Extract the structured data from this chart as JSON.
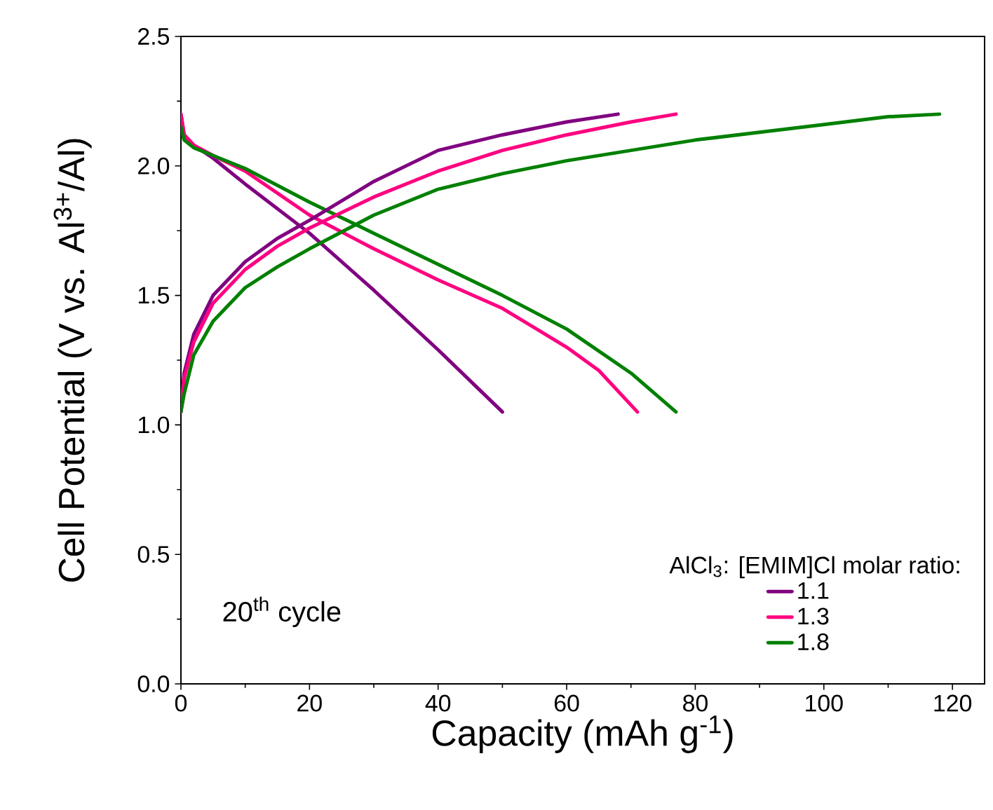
{
  "chart_data": {
    "type": "line",
    "xlabel": "Capacity (mAh g$^{-1}$)",
    "ylabel": "Cell Potential (V vs. Al$^{3+}$/Al)",
    "legend_title": "AlCl$_{3}$: [EMIM]Cl molar ratio:",
    "annotations": [
      "20$^{th}$ cycle"
    ],
    "xlim": [
      0,
      125
    ],
    "ylim": [
      0,
      2.5
    ],
    "xticks": [
      0,
      20,
      40,
      60,
      80,
      100,
      120
    ],
    "yticks": [
      {
        "value": 0,
        "label": "0.0"
      },
      0.5,
      {
        "value": 1,
        "label": "1.0"
      },
      1.5,
      {
        "value": 2,
        "label": "2.0"
      },
      2.5
    ],
    "legend": "bottom right",
    "grid": false,
    "marker": "none",
    "line_style": "solid",
    "series": [
      {
        "name": "1.1",
        "color": "#800080",
        "x": [
          0,
          0.5,
          2,
          5,
          10,
          20,
          30,
          40,
          50
        ],
        "values": [
          2.2,
          2.12,
          2.08,
          2.03,
          1.93,
          1.74,
          1.52,
          1.29,
          1.05
        ]
      },
      {
        "name": "1.3",
        "color": "#ff0080",
        "x": [
          0,
          0.5,
          2,
          5,
          10,
          20,
          30,
          40,
          50,
          60,
          65,
          71
        ],
        "values": [
          2.2,
          2.12,
          2.08,
          2.04,
          1.98,
          1.81,
          1.68,
          1.56,
          1.45,
          1.3,
          1.21,
          1.05
        ]
      },
      {
        "name": "1.8",
        "color": "#008000",
        "x": [
          0,
          0.5,
          2,
          5,
          10,
          20,
          30,
          40,
          50,
          60,
          70,
          77
        ],
        "values": [
          2.15,
          2.1,
          2.07,
          2.04,
          1.99,
          1.86,
          1.74,
          1.62,
          1.5,
          1.37,
          1.2,
          1.05
        ]
      },
      {
        "color": "#800080",
        "x": [
          0,
          0.5,
          2,
          5,
          10,
          15,
          20,
          30,
          40,
          50,
          60,
          68
        ],
        "values": [
          1.05,
          1.2,
          1.35,
          1.5,
          1.63,
          1.72,
          1.79,
          1.94,
          2.06,
          2.12,
          2.17,
          2.2
        ]
      },
      {
        "color": "#ff0080",
        "x": [
          0,
          0.5,
          2,
          5,
          10,
          15,
          20,
          30,
          40,
          50,
          60,
          70,
          77
        ],
        "values": [
          1.05,
          1.18,
          1.32,
          1.47,
          1.6,
          1.69,
          1.76,
          1.88,
          1.98,
          2.06,
          2.12,
          2.17,
          2.2
        ]
      },
      {
        "color": "#008000",
        "x": [
          0,
          0.5,
          2,
          5,
          10,
          15,
          20,
          30,
          40,
          50,
          60,
          70,
          80,
          90,
          100,
          110,
          118
        ],
        "values": [
          1.05,
          1.12,
          1.27,
          1.4,
          1.53,
          1.61,
          1.68,
          1.81,
          1.91,
          1.97,
          2.02,
          2.06,
          2.1,
          2.13,
          2.16,
          2.19,
          2.2
        ]
      }
    ]
  }
}
